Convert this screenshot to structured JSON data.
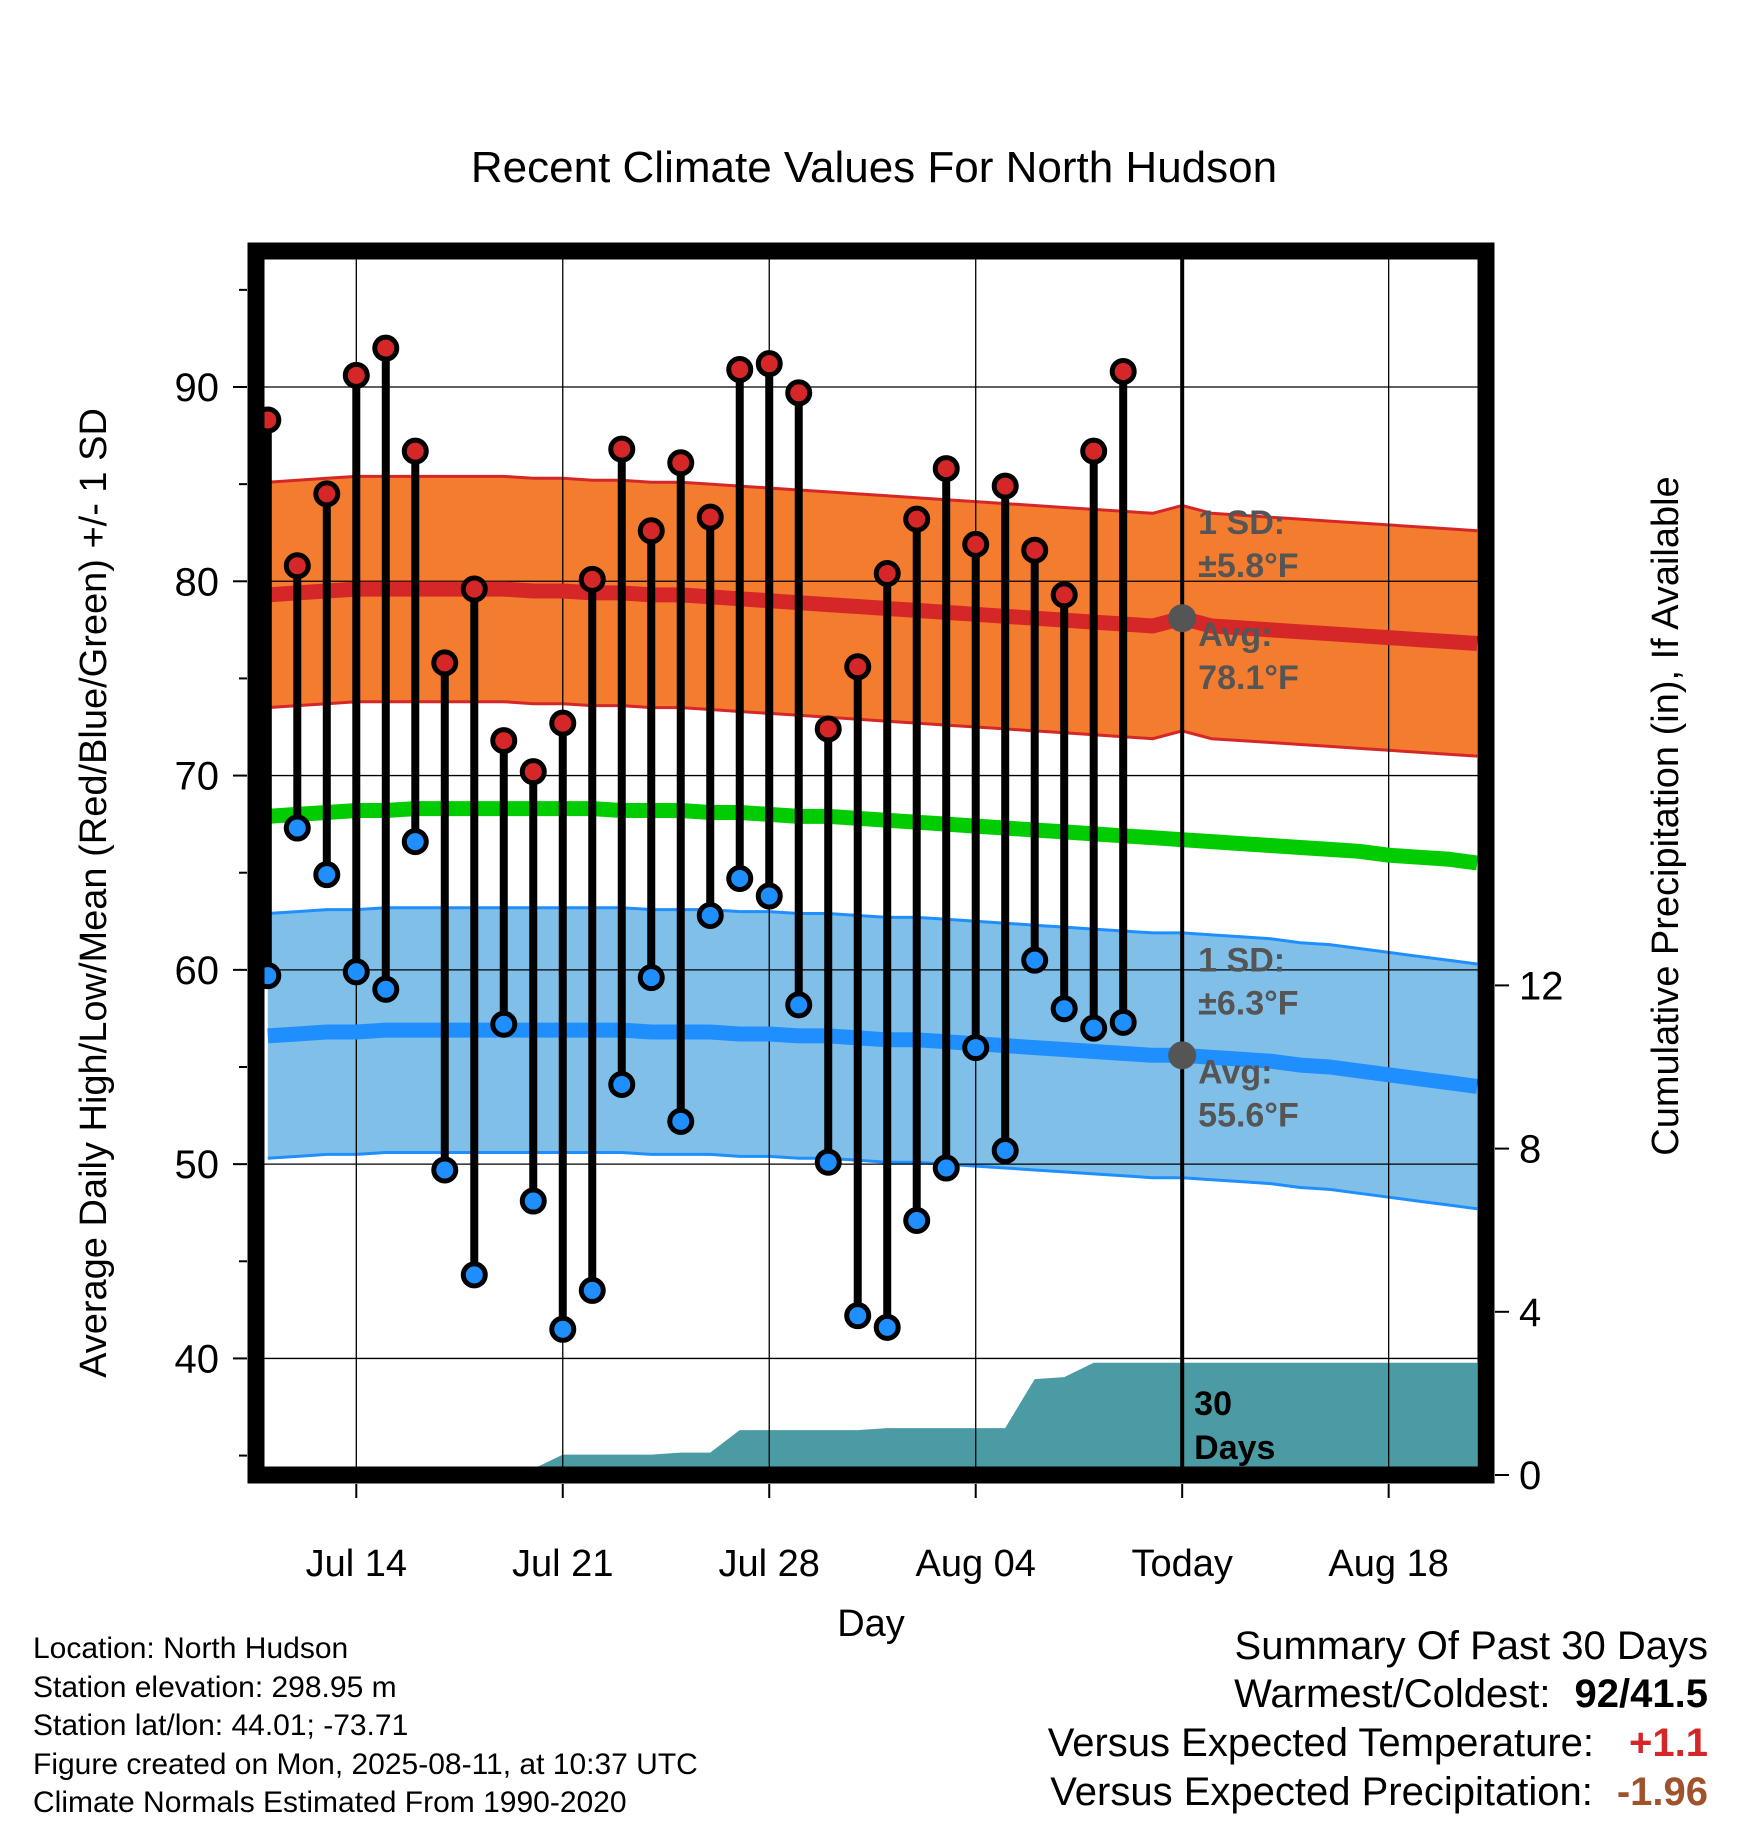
{
  "chart_data": {
    "type": "line",
    "title": "Recent Climate Values For North Hudson",
    "xlabel": "Day",
    "ylabel": "Average Daily High/Low/Mean (Red/Blue/Green) +/- 1 SD",
    "y2label": "Cumulative Precipitation (in), If Available",
    "ylim": [
      34,
      97
    ],
    "y2lim": [
      0,
      30
    ],
    "y_ticks": [
      40,
      50,
      60,
      70,
      80,
      90
    ],
    "y2_ticks": [
      0,
      4,
      8,
      12
    ],
    "x_dates": [
      "2025-07-11",
      "2025-07-12",
      "2025-07-13",
      "2025-07-14",
      "2025-07-15",
      "2025-07-16",
      "2025-07-17",
      "2025-07-18",
      "2025-07-19",
      "2025-07-20",
      "2025-07-21",
      "2025-07-22",
      "2025-07-23",
      "2025-07-24",
      "2025-07-25",
      "2025-07-26",
      "2025-07-27",
      "2025-07-28",
      "2025-07-29",
      "2025-07-30",
      "2025-07-31",
      "2025-08-01",
      "2025-08-02",
      "2025-08-03",
      "2025-08-04",
      "2025-08-05",
      "2025-08-06",
      "2025-08-07",
      "2025-08-08",
      "2025-08-09",
      "2025-08-10",
      "2025-08-11",
      "2025-08-12",
      "2025-08-13",
      "2025-08-14",
      "2025-08-15",
      "2025-08-16",
      "2025-08-17",
      "2025-08-18",
      "2025-08-19",
      "2025-08-20",
      "2025-08-21"
    ],
    "xlim": [
      "2025-07-10.6",
      "2025-08-21.3"
    ],
    "x_tick_dates": [
      "2025-07-14",
      "2025-07-21",
      "2025-07-28",
      "2025-08-04",
      "2025-08-11",
      "2025-08-18"
    ],
    "x_tick_labels": [
      "Jul 14",
      "Jul 21",
      "Jul 28",
      "Aug 04",
      "Today",
      "Aug 18"
    ],
    "today": "2025-08-11",
    "series": [
      {
        "name": "High",
        "color": "#d62728",
        "x": [
          "2025-07-11",
          "2025-07-12",
          "2025-07-13",
          "2025-07-14",
          "2025-07-15",
          "2025-07-16",
          "2025-07-17",
          "2025-07-18",
          "2025-07-19",
          "2025-07-20",
          "2025-07-21",
          "2025-07-22",
          "2025-07-23",
          "2025-07-24",
          "2025-07-25",
          "2025-07-26",
          "2025-07-27",
          "2025-07-28",
          "2025-07-29",
          "2025-07-30",
          "2025-07-31",
          "2025-08-01",
          "2025-08-02",
          "2025-08-03",
          "2025-08-04",
          "2025-08-05",
          "2025-08-06",
          "2025-08-07",
          "2025-08-08",
          "2025-08-09",
          "2025-08-10"
        ],
        "values": [
          88.3,
          80.8,
          84.5,
          90.6,
          92.0,
          86.7,
          75.8,
          79.6,
          71.8,
          70.2,
          72.7,
          80.1,
          86.8,
          82.6,
          86.1,
          83.3,
          90.9,
          91.2,
          89.7,
          72.4,
          75.6,
          80.4,
          83.2,
          85.8,
          81.9,
          84.9,
          81.6,
          79.3,
          86.7,
          90.8,
          null
        ]
      },
      {
        "name": "Low",
        "color": "#1f8fff",
        "x": [
          "2025-07-11",
          "2025-07-12",
          "2025-07-13",
          "2025-07-14",
          "2025-07-15",
          "2025-07-16",
          "2025-07-17",
          "2025-07-18",
          "2025-07-19",
          "2025-07-20",
          "2025-07-21",
          "2025-07-22",
          "2025-07-23",
          "2025-07-24",
          "2025-07-25",
          "2025-07-26",
          "2025-07-27",
          "2025-07-28",
          "2025-07-29",
          "2025-07-30",
          "2025-07-31",
          "2025-08-01",
          "2025-08-02",
          "2025-08-03",
          "2025-08-04",
          "2025-08-05",
          "2025-08-06",
          "2025-08-07",
          "2025-08-08",
          "2025-08-09",
          "2025-08-10"
        ],
        "values": [
          59.7,
          67.3,
          64.9,
          59.9,
          59.0,
          66.6,
          49.7,
          44.3,
          57.2,
          48.1,
          41.5,
          43.5,
          54.1,
          59.6,
          52.2,
          62.8,
          64.7,
          63.8,
          58.2,
          50.1,
          42.2,
          41.6,
          47.1,
          49.8,
          56.0,
          50.7,
          60.5,
          58.0,
          57.0,
          57.3,
          null
        ]
      },
      {
        "name": "Normal High",
        "color": "#d62728",
        "values": [
          79.3,
          79.4,
          79.5,
          79.6,
          79.6,
          79.6,
          79.6,
          79.6,
          79.6,
          79.5,
          79.5,
          79.4,
          79.4,
          79.3,
          79.3,
          79.2,
          79.1,
          79.0,
          78.9,
          78.8,
          78.7,
          78.6,
          78.5,
          78.4,
          78.3,
          78.2,
          78.1,
          78.0,
          77.9,
          77.8,
          77.7,
          78.1,
          77.7,
          77.6,
          77.5,
          77.4,
          77.3,
          77.2,
          77.1,
          77.0,
          76.9,
          76.8
        ]
      },
      {
        "name": "Normal High 1 SD",
        "color": "#f47c2f",
        "sd": 5.8
      },
      {
        "name": "Normal Mean",
        "color": "#00cc00",
        "values": [
          67.9,
          68.0,
          68.1,
          68.2,
          68.2,
          68.3,
          68.3,
          68.3,
          68.3,
          68.3,
          68.3,
          68.3,
          68.2,
          68.2,
          68.2,
          68.1,
          68.1,
          68.0,
          67.9,
          67.9,
          67.8,
          67.7,
          67.6,
          67.5,
          67.4,
          67.3,
          67.2,
          67.1,
          67.0,
          66.9,
          66.8,
          66.7,
          66.6,
          66.5,
          66.4,
          66.3,
          66.2,
          66.1,
          65.9,
          65.8,
          65.7,
          65.5
        ]
      },
      {
        "name": "Normal Low",
        "color": "#1f8fff",
        "values": [
          56.6,
          56.7,
          56.8,
          56.8,
          56.9,
          56.9,
          56.9,
          56.9,
          56.9,
          56.9,
          56.9,
          56.9,
          56.9,
          56.8,
          56.8,
          56.8,
          56.7,
          56.7,
          56.6,
          56.6,
          56.5,
          56.4,
          56.4,
          56.3,
          56.2,
          56.1,
          56.0,
          55.9,
          55.8,
          55.7,
          55.6,
          55.6,
          55.5,
          55.4,
          55.3,
          55.1,
          55.0,
          54.8,
          54.6,
          54.4,
          54.2,
          54.0
        ]
      },
      {
        "name": "Normal Low 1 SD",
        "color": "#80c0e8",
        "sd": 6.3
      },
      {
        "name": "Cumulative Precipitation",
        "color": "#4a9ba3",
        "x": [
          "2025-07-11",
          "2025-07-12",
          "2025-07-13",
          "2025-07-14",
          "2025-07-15",
          "2025-07-16",
          "2025-07-17",
          "2025-07-18",
          "2025-07-19",
          "2025-07-20",
          "2025-07-21",
          "2025-07-22",
          "2025-07-23",
          "2025-07-24",
          "2025-07-25",
          "2025-07-26",
          "2025-07-27",
          "2025-07-28",
          "2025-07-29",
          "2025-07-30",
          "2025-07-31",
          "2025-08-01",
          "2025-08-02",
          "2025-08-03",
          "2025-08-04",
          "2025-08-05",
          "2025-08-06",
          "2025-08-07",
          "2025-08-08",
          "2025-08-09",
          "2025-08-10",
          "2025-08-11",
          "2025-08-21"
        ],
        "values": [
          0,
          0,
          0,
          0,
          0,
          0,
          0.1,
          0.15,
          0.15,
          0.15,
          0.5,
          0.5,
          0.5,
          0.5,
          0.55,
          0.55,
          1.1,
          1.1,
          1.1,
          1.1,
          1.1,
          1.15,
          1.15,
          1.15,
          1.15,
          1.15,
          2.35,
          2.4,
          2.75,
          2.75,
          2.75,
          2.75,
          2.75
        ]
      }
    ],
    "annotations": {
      "high_sd": "1 SD:",
      "high_sd_val": "±5.8°F",
      "high_avg": "Avg:",
      "high_avg_val": "78.1°F",
      "low_sd": "1 SD:",
      "low_sd_val": "±6.3°F",
      "low_avg": "Avg:",
      "low_avg_val": "55.6°F",
      "precip_days": "30",
      "precip_days2": "Days"
    },
    "grid": true,
    "colors": {
      "annotation": "#555555",
      "frame": "#000000"
    }
  },
  "footer": {
    "location": "Location: North Hudson",
    "elevation": "Station elevation: 298.95 m",
    "latlon": "Station lat/lon: 44.01; -73.71",
    "created": "Figure created on Mon, 2025-08-11, at 10:37 UTC",
    "normals": "Climate Normals Estimated From 1990-2020"
  },
  "summary": {
    "title": "Summary Of Past 30 Days",
    "warm_cold_label": "Warmest/Coldest:",
    "warmest": "92",
    "coldest": "41.5",
    "temp_label": "Versus Expected Temperature:",
    "temp_value": "+1.1",
    "temp_color": "#d62728",
    "precip_label": "Versus Expected Precipitation:",
    "precip_value": "-1.96",
    "precip_color": "#a0522d"
  }
}
